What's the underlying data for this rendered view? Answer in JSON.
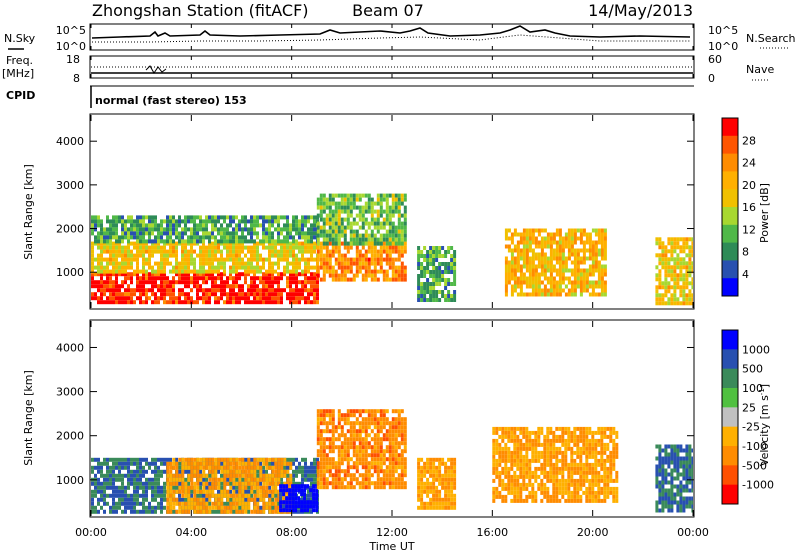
{
  "header": {
    "station": "Zhongshan Station (fitACF)",
    "beam": "Beam 07",
    "date": "14/May/2013"
  },
  "noise_panel": {
    "left_label": "N.Sky",
    "right_label": "N.Search",
    "left_ticks": [
      "10^5",
      "10^0"
    ],
    "right_ticks": [
      "10^5",
      "10^0"
    ]
  },
  "freq_panel": {
    "left_label_line1": "Freq.",
    "left_label_line2": "[MHz]",
    "right_label": "Nave",
    "left_ticks": [
      "18",
      "8"
    ],
    "right_ticks": [
      "60",
      "0"
    ]
  },
  "cpid": {
    "label": "CPID",
    "text": "normal (fast stereo) 153"
  },
  "power_panel": {
    "ylabel": "Slant Range [km]",
    "yticks": [
      "4000",
      "3000",
      "2000",
      "1000"
    ],
    "colorbar_label": "Power [dB]",
    "colorbar_ticks": [
      "28",
      "24",
      "20",
      "16",
      "12",
      "8",
      "4"
    ],
    "colorbar_colors": [
      "#ff0000",
      "#ff5500",
      "#ff8c00",
      "#ffb000",
      "#f0c000",
      "#a8d830",
      "#50b848",
      "#2e8b57",
      "#2850b0",
      "#0000ff"
    ]
  },
  "velocity_panel": {
    "ylabel": "Slant Range [km]",
    "yticks": [
      "4000",
      "3000",
      "2000",
      "1000"
    ],
    "colorbar_label": "Velocity [m s",
    "colorbar_label_sup": "-1",
    "colorbar_ticks": [
      "1000",
      "500",
      "100",
      "25",
      "-25",
      "-100",
      "-500",
      "-1000"
    ],
    "colorbar_colors": [
      "#0000ff",
      "#2850b0",
      "#3a8a5a",
      "#50c040",
      "#c0c0c0",
      "#ffb000",
      "#ff8c00",
      "#ff5000",
      "#ff0000"
    ]
  },
  "xaxis": {
    "label": "Time UT",
    "ticks": [
      "00:00",
      "04:00",
      "08:00",
      "12:00",
      "16:00",
      "20:00",
      "00:00"
    ]
  },
  "chart_data": [
    {
      "type": "heatmap",
      "title": "Power",
      "xlabel": "Time UT",
      "ylabel": "Slant Range [km]",
      "xlim": [
        0,
        24
      ],
      "ylim": [
        180,
        4600
      ],
      "zlabel": "Power [dB]",
      "zlim": [
        0,
        32
      ],
      "regions": [
        {
          "t": [
            0,
            9
          ],
          "range": [
            300,
            1000
          ],
          "power": 30
        },
        {
          "t": [
            0,
            9
          ],
          "range": [
            1000,
            1700
          ],
          "power": 18
        },
        {
          "t": [
            0,
            9
          ],
          "range": [
            1700,
            2300
          ],
          "power": 10
        },
        {
          "t": [
            9,
            12.5
          ],
          "range": [
            800,
            1700
          ],
          "power": 24
        },
        {
          "t": [
            9,
            12.5
          ],
          "range": [
            1700,
            2800
          ],
          "power": 12
        },
        {
          "t": [
            13,
            14.5
          ],
          "range": [
            400,
            1600
          ],
          "power": 10
        },
        {
          "t": [
            16.5,
            20.5
          ],
          "range": [
            500,
            2000
          ],
          "power": 20
        },
        {
          "t": [
            22.5,
            24
          ],
          "range": [
            300,
            1800
          ],
          "power": 18
        }
      ]
    },
    {
      "type": "heatmap",
      "title": "Velocity",
      "xlabel": "Time UT",
      "ylabel": "Slant Range [km]",
      "xlim": [
        0,
        24
      ],
      "ylim": [
        180,
        4600
      ],
      "zlabel": "Velocity [m s-1]",
      "zlim": [
        -1000,
        1000
      ],
      "regions": [
        {
          "t": [
            0,
            9
          ],
          "range": [
            300,
            1500
          ],
          "velocity": 100
        },
        {
          "t": [
            3,
            8
          ],
          "range": [
            300,
            1500
          ],
          "velocity": -300
        },
        {
          "t": [
            7.5,
            9
          ],
          "range": [
            300,
            900
          ],
          "velocity": 800
        },
        {
          "t": [
            9,
            12.5
          ],
          "range": [
            800,
            2600
          ],
          "velocity": -400
        },
        {
          "t": [
            13,
            14.5
          ],
          "range": [
            400,
            1500
          ],
          "velocity": -300
        },
        {
          "t": [
            16,
            21
          ],
          "range": [
            500,
            2200
          ],
          "velocity": -300
        },
        {
          "t": [
            22.5,
            24
          ],
          "range": [
            300,
            1800
          ],
          "velocity": 100
        }
      ]
    }
  ]
}
